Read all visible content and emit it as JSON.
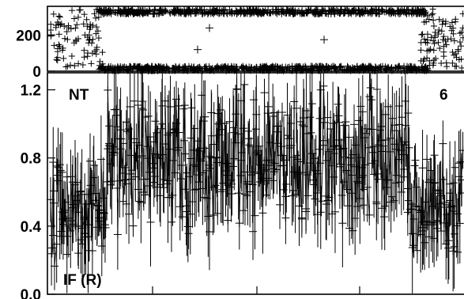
{
  "chart_data": [
    {
      "type": "scatter",
      "panel": "top",
      "ylim": [
        0,
        360
      ],
      "yticks": [
        {
          "value": 0,
          "label": "0"
        },
        {
          "value": 200,
          "label": "200"
        }
      ],
      "description_values": {
        "upper_band_center": 330,
        "lower_band_center": 15,
        "n_points_upper": 620,
        "n_points_lower": 620,
        "n_points_left_blob": 90,
        "n_points_right_blob": 90
      },
      "grid": false
    },
    {
      "type": "scatter",
      "panel": "bottom",
      "ylim": [
        0.0,
        1.3
      ],
      "yticks": [
        {
          "value": 0.0,
          "label": "0.0"
        },
        {
          "value": 0.4,
          "label": "0.4"
        },
        {
          "value": 0.8,
          "label": "0.8"
        },
        {
          "value": 1.2,
          "label": "1.2"
        }
      ],
      "labels": {
        "top_left": "NT",
        "top_right": "6",
        "bottom_left": "IF (R)"
      },
      "series": [
        {
          "n_points": 620,
          "typical_y_range": [
            0.15,
            1.25
          ]
        }
      ],
      "grid": false
    }
  ]
}
